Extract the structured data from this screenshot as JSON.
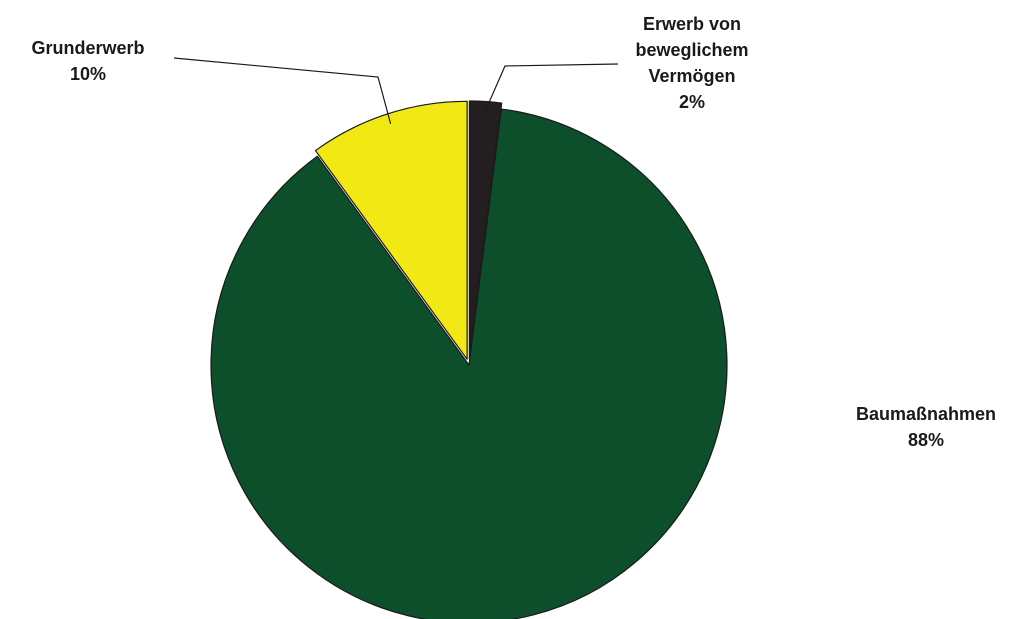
{
  "chart_data": {
    "type": "pie",
    "title": "",
    "start_angle_deg": 0,
    "direction": "clockwise",
    "slices": [
      {
        "name": "Erwerb von beweglichem Vermögen",
        "label_lines": [
          "Erwerb von",
          "beweglichem",
          "Vermögen"
        ],
        "percent_label": "2%",
        "value": 2,
        "color": "#231f20",
        "exploded": true,
        "leader_line": true
      },
      {
        "name": "Baumaßnahmen",
        "label_lines": [
          "Baumaßnahmen"
        ],
        "percent_label": "88%",
        "value": 88,
        "color": "#0d4f2a",
        "exploded": false,
        "leader_line": false
      },
      {
        "name": "Grunderwerb",
        "label_lines": [
          "Grunderwerb"
        ],
        "percent_label": "10%",
        "value": 10,
        "color": "#f2e914",
        "exploded": true,
        "leader_line": true
      }
    ],
    "outline_color": "#1a1a1a",
    "legend": "none"
  }
}
